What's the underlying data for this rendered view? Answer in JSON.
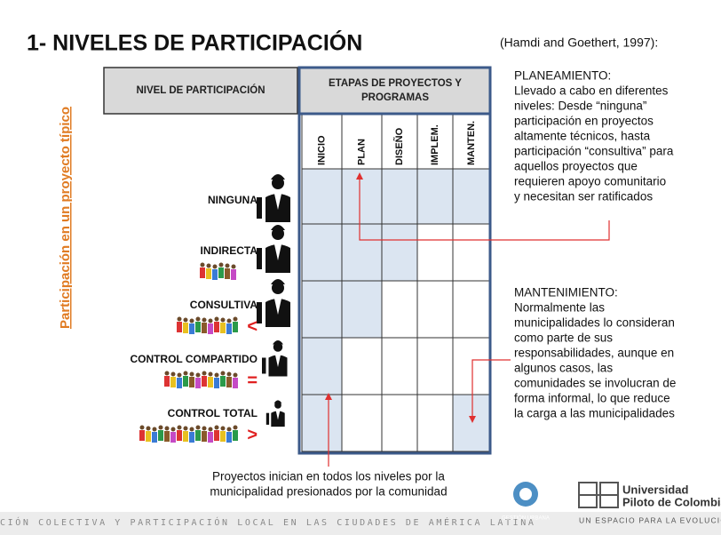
{
  "slide": {
    "title": "1- NIVELES DE PARTICIPACIÓN",
    "citation": "(Hamdi and Goethert, 1997):",
    "side_label": "Participación en un proyecto típico",
    "table": {
      "level_header": "NIVEL DE PARTICIPACIÓN",
      "stages_header": [
        "ETAPAS DE PROYECTOS Y",
        "PROGRAMAS"
      ],
      "stages": [
        "INICIO",
        "PLAN",
        "DISEÑO",
        "IMPLEM.",
        "MANTEN."
      ],
      "levels": [
        {
          "label": "NINGUNA",
          "symbol": null
        },
        {
          "label": "INDIRECTA",
          "symbol": null
        },
        {
          "label": "CONSULTIVA",
          "symbol": "<"
        },
        {
          "label": "CONTROL COMPARTIDO",
          "symbol": "="
        },
        {
          "label": "CONTROL TOTAL",
          "symbol": ">"
        }
      ],
      "shaded": [
        [
          true,
          true,
          true,
          true,
          true
        ],
        [
          true,
          true,
          true,
          false,
          false
        ],
        [
          true,
          true,
          false,
          false,
          false
        ],
        [
          true,
          false,
          false,
          false,
          false
        ],
        [
          true,
          false,
          false,
          false,
          true
        ]
      ]
    },
    "planning": {
      "heading": "PLANEAMIENTO:",
      "lines": [
        "Llevado a cabo en diferentes",
        "niveles: Desde “ninguna”",
        "participación en proyectos",
        "altamente técnicos, hasta",
        "participación “consultiva” para",
        "aquellos proyectos que",
        "requieren apoyo comunitario",
        "y necesitan ser ratificados"
      ]
    },
    "maintenance": {
      "heading": "MANTENIMIENTO:",
      "lines": [
        "Normalmente las",
        "municipalidades lo consideran",
        "como parte de sus",
        "responsabilidades, aunque en",
        "algunos casos, las",
        "comunidades se involucran de",
        "forma informal, lo que reduce",
        "la carga a las municipalidades"
      ]
    },
    "note": [
      "Proyectos inician en todos los niveles por la",
      "municipalidad presionados por la comunidad"
    ],
    "footer": {
      "strip": "CIÓN COLECTIVA Y PARTICIPACIÓN LOCAL EN LAS CIUDADES DE AMÉRICA LATINA",
      "logo_left": "GESTIÓN URBANA",
      "university": [
        "Universidad",
        "Piloto de Colombia"
      ],
      "motto": "UN ESPACIO PARA LA EVOLUCIÓN"
    }
  }
}
